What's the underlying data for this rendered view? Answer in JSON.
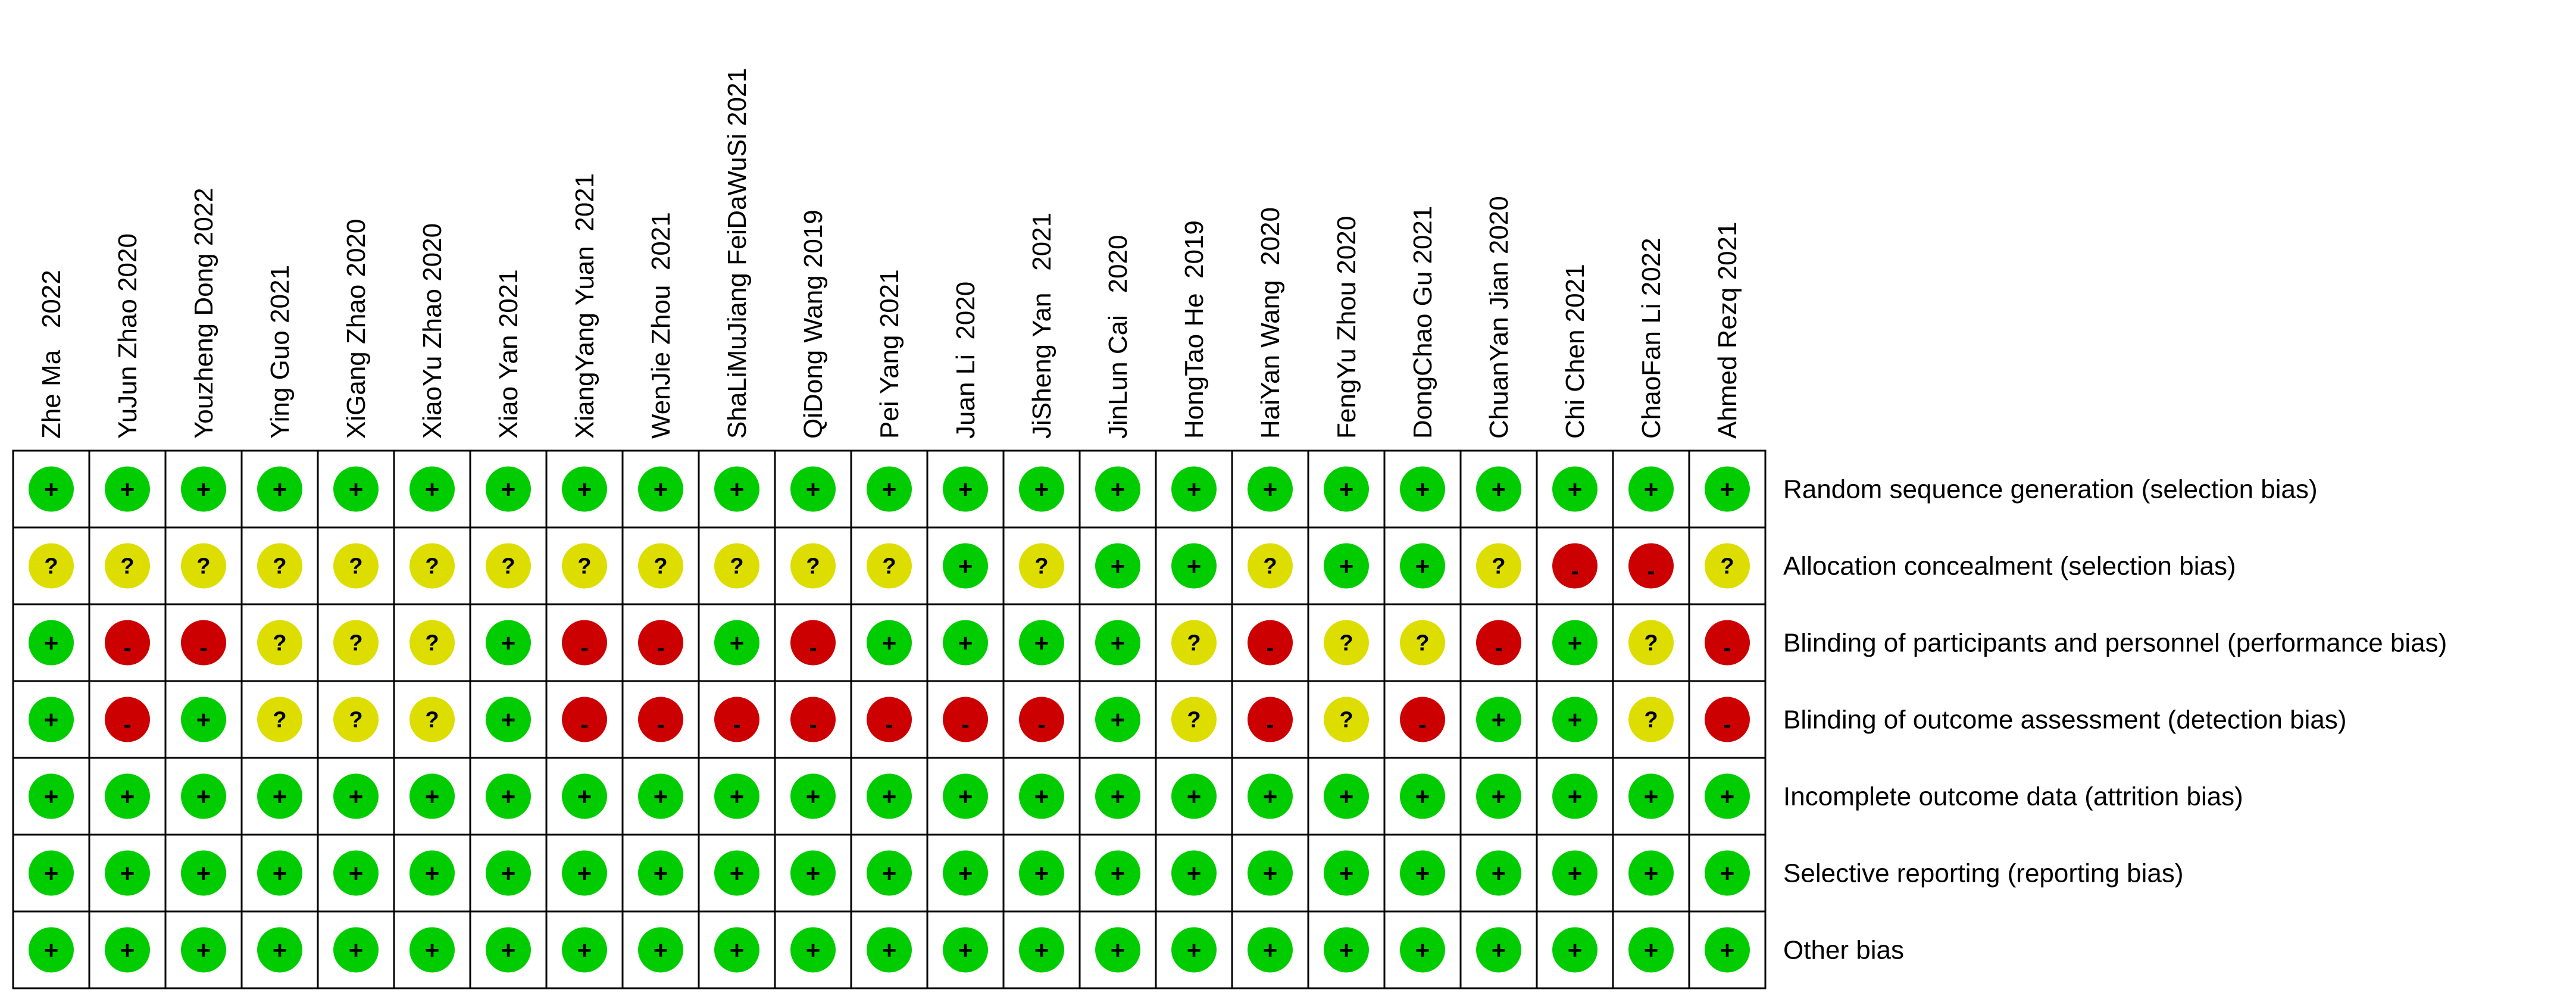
{
  "chart_data": {
    "type": "table",
    "studies": [
      "Zhe Ma   2022",
      "YuJun Zhao 2020",
      "Youzheng Dong 2022",
      "Ying Guo 2021",
      "XiGang Zhao 2020",
      "XiaoYu Zhao 2020",
      "Xiao Yan 2021",
      "XiangYang Yuan  2021",
      "WenJie Zhou  2021",
      "ShaLiMuJiang FeiDaWuSi 2021",
      "QiDong Wang 2019",
      "Pei Yang 2021",
      "Juan Li  2020",
      "JiSheng Yan   2021",
      "JinLun Cai   2020",
      "HongTao He  2019",
      "HaiYan Wang  2020",
      "FengYu Zhou 2020",
      "DongChao Gu 2021",
      "ChuanYan Jian 2020",
      "Chi Chen 2021",
      "ChaoFan Li 2022",
      "Ahmed Rezq 2021"
    ],
    "domains": [
      "Random sequence generation (selection bias)",
      "Allocation concealment (selection bias)",
      "Blinding of participants and personnel (performance bias)",
      "Blinding of outcome assessment (detection bias)",
      "Incomplete outcome data (attrition bias)",
      "Selective reporting (reporting bias)",
      "Other bias"
    ],
    "judgements": [
      [
        "+",
        "+",
        "+",
        "+",
        "+",
        "+",
        "+",
        "+",
        "+",
        "+",
        "+",
        "+",
        "+",
        "+",
        "+",
        "+",
        "+",
        "+",
        "+",
        "+",
        "+",
        "+",
        "+"
      ],
      [
        "?",
        "?",
        "?",
        "?",
        "?",
        "?",
        "?",
        "?",
        "?",
        "?",
        "?",
        "?",
        "+",
        "?",
        "+",
        "+",
        "?",
        "+",
        "+",
        "?",
        "-",
        "-",
        "?"
      ],
      [
        "+",
        "-",
        "-",
        "?",
        "?",
        "?",
        "+",
        "-",
        "-",
        "+",
        "-",
        "+",
        "+",
        "+",
        "+",
        "?",
        "-",
        "?",
        "?",
        "-",
        "+",
        "?",
        "-"
      ],
      [
        "+",
        "-",
        "+",
        "?",
        "?",
        "?",
        "+",
        "-",
        "-",
        "-",
        "-",
        "-",
        "-",
        "-",
        "+",
        "?",
        "-",
        "?",
        "-",
        "+",
        "+",
        "?",
        "-"
      ],
      [
        "+",
        "+",
        "+",
        "+",
        "+",
        "+",
        "+",
        "+",
        "+",
        "+",
        "+",
        "+",
        "+",
        "+",
        "+",
        "+",
        "+",
        "+",
        "+",
        "+",
        "+",
        "+",
        "+"
      ],
      [
        "+",
        "+",
        "+",
        "+",
        "+",
        "+",
        "+",
        "+",
        "+",
        "+",
        "+",
        "+",
        "+",
        "+",
        "+",
        "+",
        "+",
        "+",
        "+",
        "+",
        "+",
        "+",
        "+"
      ],
      [
        "+",
        "+",
        "+",
        "+",
        "+",
        "+",
        "+",
        "+",
        "+",
        "+",
        "+",
        "+",
        "+",
        "+",
        "+",
        "+",
        "+",
        "+",
        "+",
        "+",
        "+",
        "+",
        "+"
      ]
    ],
    "colors": {
      "+": "#00cc00",
      "?": "#dddd00",
      "-": "#cc0000"
    }
  }
}
